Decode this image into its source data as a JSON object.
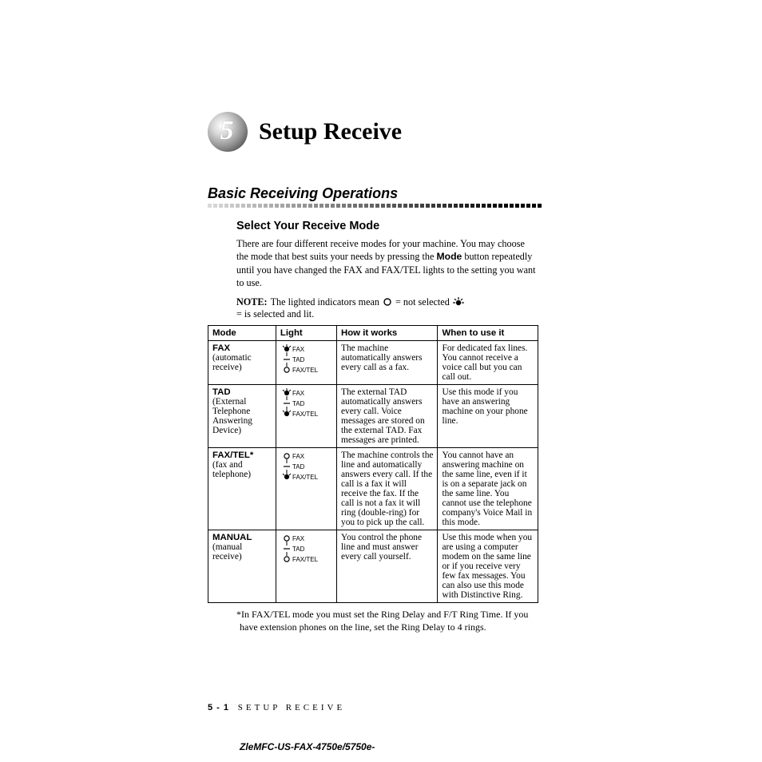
{
  "chapter": {
    "number": "5",
    "title": "Setup Receive"
  },
  "section": {
    "title": "Basic Receiving Operations"
  },
  "subsection": {
    "title": "Select Your Receive Mode",
    "para1_a": "There are four different receive modes for your machine.  You may choose the mode that best suits your needs by pressing the ",
    "para1_bold": "Mode",
    "para1_b": " button repeatedly until you have changed the FAX and FAX/TEL lights to the setting you want to use.",
    "note_label": "NOTE:",
    "note_a": " The lighted indicators mean ",
    "note_mid": " = not selected  ",
    "note_end": " = is selected and lit."
  },
  "table": {
    "headers": [
      "Mode",
      "Light",
      "How it works",
      "When to use it"
    ],
    "rows": [
      {
        "mode_bold": "FAX",
        "mode_sub": "(automatic receive)",
        "lights": {
          "fax": "on",
          "tad": "dash",
          "faxtel": "off",
          "labels": [
            "FAX",
            "TAD",
            "FAX/TEL"
          ]
        },
        "how": "The machine automatically answers every call as a fax.",
        "when": "For dedicated fax lines. You cannot receive a voice call but you can call out."
      },
      {
        "mode_bold": "TAD",
        "mode_sub": "(External Telephone Answering Device)",
        "lights": {
          "fax": "on",
          "tad": "dash",
          "faxtel": "on",
          "labels": [
            "FAX",
            "TAD",
            "FAX/TEL"
          ]
        },
        "how": "The external TAD automatically answers every call. Voice messages are stored on the external TAD.  Fax messages are printed.",
        "when": "Use this mode if you have an answering machine on your phone line."
      },
      {
        "mode_bold": "FAX/TEL*",
        "mode_sub": "(fax and telephone)",
        "lights": {
          "fax": "off",
          "tad": "dash",
          "faxtel": "on",
          "labels": [
            "FAX",
            "TAD",
            "FAX/TEL"
          ]
        },
        "how": "The machine controls the line and automatically answers every call.  If the call is a fax it will receive the fax.  If the call is not a fax it will ring (double-ring) for you to pick up the call.",
        "when": "You cannot have an answering machine on the same line, even if it is on a separate jack on the same line. You cannot use the telephone company's Voice Mail in this mode."
      },
      {
        "mode_bold": "MANUAL",
        "mode_sub": "(manual receive)",
        "lights": {
          "fax": "off",
          "tad": "dash",
          "faxtel": "off",
          "labels": [
            "FAX",
            "TAD",
            "FAX/TEL"
          ]
        },
        "how": "You control the phone line and must answer every call yourself.",
        "when": "Use this mode when you are using a computer modem on the same line or if you receive very few fax messages. You can also use this mode with Distinctive Ring."
      }
    ]
  },
  "footnote": "*In FAX/TEL mode you must set the Ring Delay and F/T Ring Time. If you have extension phones on the line, set the Ring Delay to 4 rings.",
  "footer": {
    "pagenum": "5 - 1",
    "section": "SETUP RECEIVE",
    "docid": "ZleMFC-US-FAX-4750e/5750e-"
  },
  "colors": {
    "text": "#000000",
    "dash": "#8a8a8a",
    "dash_dark": "#555555"
  }
}
